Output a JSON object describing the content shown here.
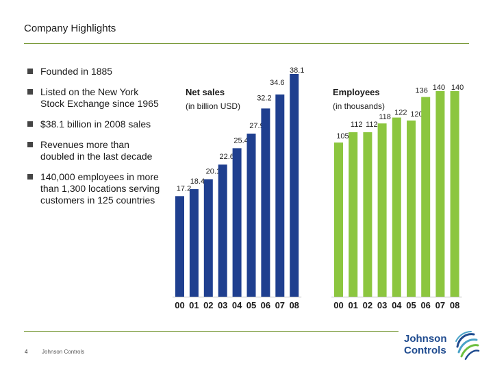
{
  "title": "Company Highlights",
  "bullets": [
    "Founded in 1885",
    "Listed on the New York Stock Exchange since 1965",
    "$38.1 billion in 2008 sales",
    "Revenues more than doubled in the last decade",
    "140,000 employees in more than 1,300 locations serving customers in 125 countries"
  ],
  "footer": {
    "page": "4",
    "company": "Johnson Controls"
  },
  "logo": {
    "line1": "Johnson",
    "line2": "Controls",
    "icon": "globe-swirl-icon"
  },
  "colors": {
    "sales": "#1f3f8f",
    "employees": "#8cc63f",
    "rule": "#7a9a3a"
  },
  "chart_data": [
    {
      "type": "bar",
      "title": "Net sales",
      "subtitle": "(in billion USD)",
      "categories": [
        "00",
        "01",
        "02",
        "03",
        "04",
        "05",
        "06",
        "07",
        "08"
      ],
      "values": [
        17.2,
        18.4,
        20.1,
        22.6,
        25.4,
        27.9,
        32.2,
        34.6,
        38.1
      ],
      "labels": [
        "17.2",
        "18.4",
        "20.1",
        "22.6",
        "25.4",
        "27.9",
        "32.2",
        "34.6",
        "38.1"
      ],
      "ylim": [
        0,
        38.1
      ]
    },
    {
      "type": "bar",
      "title": "Employees",
      "subtitle": "(in thousands)",
      "categories": [
        "00",
        "01",
        "02",
        "03",
        "04",
        "05",
        "06",
        "07",
        "08"
      ],
      "values": [
        105,
        112,
        112,
        118,
        122,
        120,
        136,
        140,
        140
      ],
      "labels": [
        "105",
        "112",
        "112",
        "118",
        "122",
        "120",
        "136",
        "140",
        "140"
      ],
      "ylim": [
        0,
        140
      ]
    }
  ]
}
